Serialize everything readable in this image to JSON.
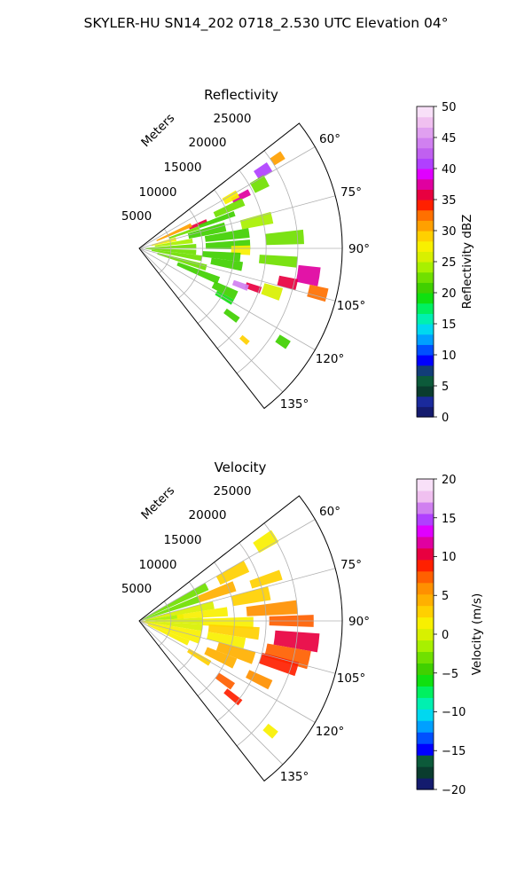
{
  "figure": {
    "suptitle": "SKYLER-HU  SN14_202  0718_2.530 UTC Elevation 04°"
  },
  "chart_data": [
    {
      "type": "heatmap",
      "subtype": "polar-sector",
      "title": "Reflectivity",
      "radial_label": "Meters",
      "radial_ticks": [
        "5000",
        "10000",
        "15000",
        "20000",
        "25000"
      ],
      "radial_max": 32000,
      "angle_ticks": [
        "60°",
        "75°",
        "90°",
        "105°",
        "120°",
        "135°"
      ],
      "angle_range_deg": [
        52,
        142
      ],
      "colorbar": {
        "label": "Reflectivity dBZ",
        "range": [
          0,
          50
        ],
        "ticks": [
          "0",
          "5",
          "10",
          "15",
          "20",
          "25",
          "30",
          "35",
          "40",
          "45",
          "50"
        ],
        "colors": [
          "#141b6e",
          "#1a2a9c",
          "#0a3c2e",
          "#0c5a3a",
          "#123d78",
          "#0000ff",
          "#0050ff",
          "#00a0ff",
          "#00d8f0",
          "#00f0b0",
          "#00f060",
          "#10e010",
          "#40d000",
          "#70e000",
          "#a8f000",
          "#d8f000",
          "#f8f000",
          "#ffd000",
          "#ffa000",
          "#ff7000",
          "#ff2000",
          "#e80040",
          "#e000a0",
          "#e000ff",
          "#b040ff",
          "#c060f0",
          "#d080f0",
          "#e0a0f0",
          "#f0c0f0",
          "#f8e0f8"
        ]
      },
      "cells": [
        {
          "az": 58,
          "r": 23000,
          "dr": 2500,
          "da": 4,
          "v": 40
        },
        {
          "az": 57,
          "r": 26000,
          "dr": 2000,
          "da": 3,
          "v": 30
        },
        {
          "az": 62,
          "r": 21500,
          "dr": 2500,
          "da": 5,
          "v": 22
        },
        {
          "az": 63,
          "r": 18000,
          "dr": 3000,
          "da": 3,
          "v": 38
        },
        {
          "az": 61,
          "r": 16500,
          "dr": 2500,
          "da": 4,
          "v": 28
        },
        {
          "az": 66,
          "r": 15500,
          "dr": 5000,
          "da": 4,
          "v": 22
        },
        {
          "az": 68,
          "r": 10000,
          "dr": 3000,
          "da": 3,
          "v": 36
        },
        {
          "az": 70,
          "r": 13000,
          "dr": 6000,
          "da": 3,
          "v": 21
        },
        {
          "az": 66,
          "r": 6000,
          "dr": 6000,
          "da": 4,
          "v": 30
        },
        {
          "az": 71,
          "r": 7500,
          "dr": 5000,
          "da": 3,
          "v": 22
        },
        {
          "az": 76,
          "r": 4000,
          "dr": 4000,
          "da": 6,
          "v": 27
        },
        {
          "az": 76,
          "r": 11000,
          "dr": 6000,
          "da": 6,
          "v": 21
        },
        {
          "az": 77,
          "r": 19000,
          "dr": 5000,
          "da": 5,
          "v": 24
        },
        {
          "az": 82,
          "r": 5500,
          "dr": 6000,
          "da": 5,
          "v": 24
        },
        {
          "az": 82,
          "r": 14000,
          "dr": 7000,
          "da": 5,
          "v": 21
        },
        {
          "az": 86,
          "r": 23000,
          "dr": 6000,
          "da": 5,
          "v": 22
        },
        {
          "az": 88,
          "r": 5000,
          "dr": 8000,
          "da": 5,
          "v": 23
        },
        {
          "az": 88,
          "r": 14000,
          "dr": 7000,
          "da": 5,
          "v": 21
        },
        {
          "az": 91,
          "r": 16000,
          "dr": 3000,
          "da": 5,
          "v": 27
        },
        {
          "az": 94,
          "r": 5000,
          "dr": 8000,
          "da": 5,
          "v": 22
        },
        {
          "az": 95,
          "r": 13000,
          "dr": 6000,
          "da": 5,
          "v": 21
        },
        {
          "az": 95,
          "r": 22000,
          "dr": 6000,
          "da": 4,
          "v": 22
        },
        {
          "az": 99,
          "r": 6000,
          "dr": 8000,
          "da": 5,
          "v": 22
        },
        {
          "az": 100,
          "r": 14000,
          "dr": 5000,
          "da": 5,
          "v": 21
        },
        {
          "az": 99,
          "r": 27000,
          "dr": 3500,
          "da": 6,
          "v": 38
        },
        {
          "az": 103,
          "r": 24000,
          "dr": 3000,
          "da": 4,
          "v": 35
        },
        {
          "az": 104,
          "r": 29000,
          "dr": 3000,
          "da": 4,
          "v": 32
        },
        {
          "az": 106,
          "r": 7000,
          "dr": 8000,
          "da": 5,
          "v": 22
        },
        {
          "az": 109,
          "r": 19000,
          "dr": 2500,
          "da": 3,
          "v": 36
        },
        {
          "az": 110,
          "r": 17000,
          "dr": 2500,
          "da": 3,
          "v": 44
        },
        {
          "az": 108,
          "r": 22000,
          "dr": 3000,
          "da": 5,
          "v": 25
        },
        {
          "az": 112,
          "r": 10000,
          "dr": 7000,
          "da": 5,
          "v": 21
        },
        {
          "az": 116,
          "r": 15000,
          "dr": 4000,
          "da": 5,
          "v": 21
        },
        {
          "az": 120,
          "r": 15500,
          "dr": 3000,
          "da": 3,
          "v": 19
        },
        {
          "az": 126,
          "r": 18000,
          "dr": 2500,
          "da": 3,
          "v": 20
        },
        {
          "az": 131,
          "r": 22000,
          "dr": 1500,
          "da": 2,
          "v": 29
        },
        {
          "az": 123,
          "r": 27000,
          "dr": 2000,
          "da": 3,
          "v": 20
        }
      ]
    },
    {
      "type": "heatmap",
      "subtype": "polar-sector",
      "title": "Velocity",
      "radial_label": "Meters",
      "radial_ticks": [
        "5000",
        "10000",
        "15000",
        "20000",
        "25000"
      ],
      "radial_max": 32000,
      "angle_ticks": [
        "60°",
        "75°",
        "90°",
        "105°",
        "120°",
        "135°"
      ],
      "angle_range_deg": [
        52,
        142
      ],
      "colorbar": {
        "label": "Velocity (m/s)",
        "range": [
          -20,
          20
        ],
        "ticks": [
          "−20",
          "−15",
          "−10",
          "−5",
          "0",
          "5",
          "10",
          "15",
          "20"
        ],
        "colors": [
          "#141b6e",
          "#0a3c2e",
          "#0c5a3a",
          "#0000ff",
          "#0050ff",
          "#00a0ff",
          "#00d8f0",
          "#00f0b0",
          "#00f060",
          "#10e010",
          "#40d000",
          "#70e000",
          "#a8f000",
          "#d8f000",
          "#f8f000",
          "#ffd000",
          "#ffb000",
          "#ff9000",
          "#ff6000",
          "#ff2000",
          "#e80040",
          "#e000a0",
          "#e000ff",
          "#b040ff",
          "#d080f0",
          "#f0c0f0",
          "#f8e0f8"
        ]
      },
      "cells": [
        {
          "az": 58,
          "r": 23500,
          "dr": 3500,
          "da": 5,
          "v": 2
        },
        {
          "az": 63,
          "r": 6000,
          "dr": 12000,
          "da": 6,
          "v": -3
        },
        {
          "az": 63,
          "r": 16500,
          "dr": 5000,
          "da": 6,
          "v": 3
        },
        {
          "az": 70,
          "r": 5000,
          "dr": 10000,
          "da": 6,
          "v": -3
        },
        {
          "az": 70,
          "r": 13000,
          "dr": 6000,
          "da": 6,
          "v": 4
        },
        {
          "az": 72,
          "r": 21000,
          "dr": 5000,
          "da": 4,
          "v": 3
        },
        {
          "az": 78,
          "r": 6000,
          "dr": 12000,
          "da": 6,
          "v": 0
        },
        {
          "az": 78,
          "r": 18000,
          "dr": 6000,
          "da": 6,
          "v": 3
        },
        {
          "az": 84,
          "r": 4000,
          "dr": 6000,
          "da": 6,
          "v": -1
        },
        {
          "az": 84,
          "r": 10000,
          "dr": 8000,
          "da": 6,
          "v": 1
        },
        {
          "az": 85,
          "r": 21000,
          "dr": 8000,
          "da": 5,
          "v": 6
        },
        {
          "az": 90,
          "r": 5000,
          "dr": 10000,
          "da": 6,
          "v": 0
        },
        {
          "az": 91,
          "r": 14000,
          "dr": 8000,
          "da": 6,
          "v": 2
        },
        {
          "az": 90,
          "r": 24000,
          "dr": 7000,
          "da": 4,
          "v": 8
        },
        {
          "az": 96,
          "r": 5000,
          "dr": 10000,
          "da": 6,
          "v": 0
        },
        {
          "az": 96,
          "r": 15000,
          "dr": 8000,
          "da": 6,
          "v": 3
        },
        {
          "az": 97,
          "r": 25000,
          "dr": 7000,
          "da": 6,
          "v": 10
        },
        {
          "az": 102,
          "r": 5000,
          "dr": 10000,
          "da": 6,
          "v": 1
        },
        {
          "az": 102,
          "r": 14000,
          "dr": 6000,
          "da": 6,
          "v": 2
        },
        {
          "az": 103,
          "r": 24000,
          "dr": 7000,
          "da": 6,
          "v": 8
        },
        {
          "az": 108,
          "r": 5000,
          "dr": 10000,
          "da": 6,
          "v": 1
        },
        {
          "az": 108,
          "r": 16000,
          "dr": 6000,
          "da": 6,
          "v": 5
        },
        {
          "az": 107,
          "r": 23000,
          "dr": 6000,
          "da": 5,
          "v": 9
        },
        {
          "az": 114,
          "r": 5000,
          "dr": 7000,
          "da": 6,
          "v": 1
        },
        {
          "az": 114,
          "r": 14000,
          "dr": 5000,
          "da": 6,
          "v": 4
        },
        {
          "az": 116,
          "r": 21000,
          "dr": 4000,
          "da": 4,
          "v": 6
        },
        {
          "az": 121,
          "r": 11000,
          "dr": 4000,
          "da": 4,
          "v": 3
        },
        {
          "az": 125,
          "r": 16500,
          "dr": 3000,
          "da": 4,
          "v": 8
        },
        {
          "az": 129,
          "r": 19000,
          "dr": 3000,
          "da": 3,
          "v": 9
        },
        {
          "az": 130,
          "r": 27000,
          "dr": 2000,
          "da": 3,
          "v": 2
        }
      ]
    }
  ]
}
